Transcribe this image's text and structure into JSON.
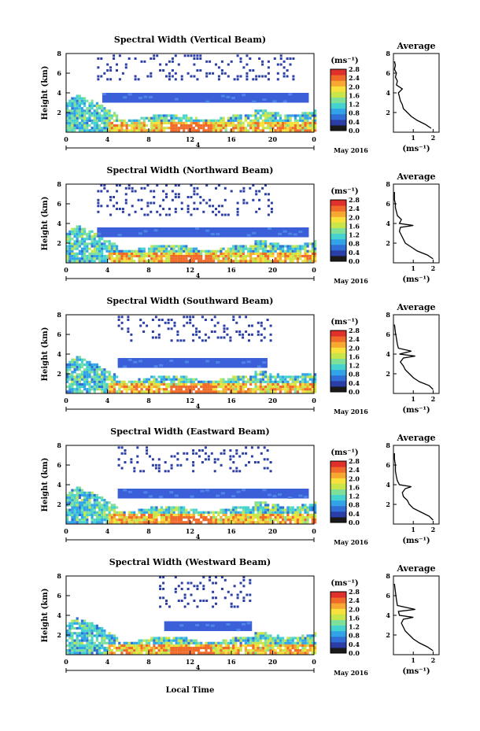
{
  "figure": {
    "x_axis_title": "Local Time",
    "date_label": "May 2016",
    "day_marker": "4",
    "units_label": "(ms⁻¹)",
    "avg_title": "Average",
    "avg_xlabel": "(ms⁻¹)",
    "height_label": "Height (km)"
  },
  "colors": {
    "scale": [
      "#1a1a1a",
      "#2b3ea8",
      "#2f6fd6",
      "#33a3e8",
      "#46d3d0",
      "#7fe09a",
      "#c8e64a",
      "#f7e13a",
      "#f7a830",
      "#f06a2a",
      "#e0302a"
    ],
    "low_cloud_layer": "#3a5fd8",
    "high_speckle": "#2c3fa6"
  },
  "chart_data": [
    {
      "type": "heatmap",
      "title": "Spectral Width (Vertical Beam)",
      "xlabel": "",
      "ylabel": "Height (km)",
      "xlim": [
        0,
        24
      ],
      "ylim": [
        0,
        8
      ],
      "x_ticks": [
        "0",
        "4",
        "8",
        "12",
        "16",
        "20",
        "0"
      ],
      "y_ticks": [
        "2",
        "4",
        "6",
        "8"
      ],
      "colorbar": {
        "label": "(ms⁻¹)",
        "ticks": [
          "0.0",
          "0.4",
          "0.8",
          "1.2",
          "1.6",
          "2.0",
          "2.4",
          "2.8"
        ],
        "range": [
          0,
          2.8
        ]
      },
      "average_profile": {
        "title": "Average",
        "xlabel": "(ms⁻¹)",
        "x_ticks": [
          "1",
          "2"
        ],
        "y_ticks": [
          "2",
          "4",
          "6",
          "8"
        ],
        "xlim": [
          0,
          2.3
        ],
        "ylim": [
          0,
          8
        ],
        "points": [
          [
            1.9,
            0.4
          ],
          [
            1.6,
            0.8
          ],
          [
            1.2,
            1.2
          ],
          [
            0.9,
            1.6
          ],
          [
            0.7,
            2.0
          ],
          [
            0.5,
            2.4
          ],
          [
            0.45,
            2.8
          ],
          [
            0.35,
            3.2
          ],
          [
            0.3,
            3.6
          ],
          [
            0.25,
            4.0
          ],
          [
            0.45,
            4.4
          ],
          [
            0.15,
            4.8
          ],
          [
            0.2,
            5.2
          ],
          [
            0.1,
            5.6
          ],
          [
            0.15,
            6.0
          ],
          [
            0.05,
            6.4
          ],
          [
            0.1,
            6.8
          ],
          [
            0.05,
            7.2
          ]
        ]
      },
      "layer": {
        "x_start": 3.5,
        "x_end": 23.5,
        "y_bottom": 3.0,
        "y_top": 4.0,
        "value": 0.4
      },
      "low_region_value_max": 2.6,
      "high_speckle": {
        "x_start": 3.0,
        "x_end": 22.0,
        "y_bottom": 5.5,
        "y_top": 8.0
      }
    },
    {
      "type": "heatmap",
      "title": "Spectral Width (Northward Beam)",
      "xlabel": "",
      "ylabel": "Height (km)",
      "xlim": [
        0,
        24
      ],
      "ylim": [
        0,
        8
      ],
      "x_ticks": [
        "0",
        "4",
        "8",
        "12",
        "16",
        "20",
        "0"
      ],
      "y_ticks": [
        "2",
        "4",
        "6",
        "8"
      ],
      "colorbar": {
        "label": "(ms⁻¹)",
        "ticks": [
          "0.0",
          "0.4",
          "0.8",
          "1.2",
          "1.6",
          "2.0",
          "2.4",
          "2.8"
        ],
        "range": [
          0,
          2.8
        ]
      },
      "average_profile": {
        "title": "Average",
        "xlabel": "(ms⁻¹)",
        "x_ticks": [
          "1",
          "2"
        ],
        "y_ticks": [
          "2",
          "4",
          "6",
          "8"
        ],
        "xlim": [
          0,
          2.3
        ],
        "ylim": [
          0,
          8
        ],
        "points": [
          [
            2.0,
            0.4
          ],
          [
            1.7,
            0.8
          ],
          [
            1.2,
            1.2
          ],
          [
            0.9,
            1.6
          ],
          [
            0.6,
            2.0
          ],
          [
            0.5,
            2.4
          ],
          [
            0.4,
            2.8
          ],
          [
            0.3,
            3.2
          ],
          [
            0.35,
            3.6
          ],
          [
            1.0,
            3.8
          ],
          [
            0.3,
            4.0
          ],
          [
            0.4,
            4.4
          ],
          [
            0.2,
            4.8
          ],
          [
            0.15,
            5.2
          ],
          [
            0.1,
            5.6
          ],
          [
            0.1,
            6.0
          ],
          [
            0.05,
            6.4
          ],
          [
            0.05,
            7.2
          ]
        ]
      },
      "layer": {
        "x_start": 3.0,
        "x_end": 23.5,
        "y_bottom": 2.6,
        "y_top": 3.6,
        "value": 0.4
      },
      "low_region_value_max": 2.6,
      "high_speckle": {
        "x_start": 3.0,
        "x_end": 20.0,
        "y_bottom": 5.0,
        "y_top": 8.0
      }
    },
    {
      "type": "heatmap",
      "title": "Spectral Width (Southward Beam)",
      "xlabel": "",
      "ylabel": "Height (km)",
      "xlim": [
        0,
        24
      ],
      "ylim": [
        0,
        8
      ],
      "x_ticks": [
        "0",
        "4",
        "8",
        "12",
        "16",
        "20",
        "0"
      ],
      "y_ticks": [
        "2",
        "4",
        "6",
        "8"
      ],
      "colorbar": {
        "label": "(ms⁻¹)",
        "ticks": [
          "0.0",
          "0.4",
          "0.8",
          "1.2",
          "1.6",
          "2.0",
          "2.4",
          "2.8"
        ],
        "range": [
          0,
          2.8
        ]
      },
      "average_profile": {
        "title": "Average",
        "xlabel": "(ms⁻¹)",
        "x_ticks": [
          "1",
          "2"
        ],
        "y_ticks": [
          "2",
          "4",
          "6",
          "8"
        ],
        "xlim": [
          0,
          2.3
        ],
        "ylim": [
          0,
          8
        ],
        "points": [
          [
            2.0,
            0.4
          ],
          [
            1.8,
            0.8
          ],
          [
            1.3,
            1.2
          ],
          [
            1.0,
            1.6
          ],
          [
            0.8,
            2.0
          ],
          [
            0.6,
            2.4
          ],
          [
            0.5,
            2.8
          ],
          [
            0.35,
            3.2
          ],
          [
            0.5,
            3.6
          ],
          [
            1.1,
            3.8
          ],
          [
            0.3,
            4.0
          ],
          [
            0.9,
            4.3
          ],
          [
            0.25,
            4.6
          ],
          [
            0.2,
            5.0
          ],
          [
            0.15,
            5.6
          ],
          [
            0.1,
            6.2
          ],
          [
            0.05,
            7.0
          ]
        ]
      },
      "layer": {
        "x_start": 5.0,
        "x_end": 19.5,
        "y_bottom": 2.6,
        "y_top": 3.6,
        "value": 0.4
      },
      "low_region_value_max": 2.6,
      "high_speckle": {
        "x_start": 5.0,
        "x_end": 20.0,
        "y_bottom": 5.5,
        "y_top": 8.0
      }
    },
    {
      "type": "heatmap",
      "title": "Spectral Width (Eastward Beam)",
      "xlabel": "",
      "ylabel": "Height (km)",
      "xlim": [
        0,
        24
      ],
      "ylim": [
        0,
        8
      ],
      "x_ticks": [
        "0",
        "4",
        "8",
        "12",
        "16",
        "20",
        "0"
      ],
      "y_ticks": [
        "2",
        "4",
        "6",
        "8"
      ],
      "colorbar": {
        "label": "(ms⁻¹)",
        "ticks": [
          "0.0",
          "0.4",
          "0.8",
          "1.2",
          "1.6",
          "2.0",
          "2.4",
          "2.8"
        ],
        "range": [
          0,
          2.8
        ]
      },
      "average_profile": {
        "title": "Average",
        "xlabel": "(ms⁻¹)",
        "x_ticks": [
          "1",
          "2"
        ],
        "y_ticks": [
          "2",
          "4",
          "6",
          "8"
        ],
        "xlim": [
          0,
          2.3
        ],
        "ylim": [
          0,
          8
        ],
        "points": [
          [
            2.0,
            0.4
          ],
          [
            1.8,
            0.8
          ],
          [
            1.4,
            1.2
          ],
          [
            1.0,
            1.6
          ],
          [
            0.8,
            2.0
          ],
          [
            0.7,
            2.4
          ],
          [
            0.5,
            2.8
          ],
          [
            0.45,
            3.2
          ],
          [
            0.6,
            3.6
          ],
          [
            0.9,
            3.8
          ],
          [
            0.3,
            4.0
          ],
          [
            0.2,
            4.4
          ],
          [
            0.15,
            4.8
          ],
          [
            0.1,
            5.4
          ],
          [
            0.1,
            6.0
          ],
          [
            0.05,
            6.6
          ],
          [
            0.05,
            7.2
          ]
        ]
      },
      "layer": {
        "x_start": 5.0,
        "x_end": 23.5,
        "y_bottom": 2.6,
        "y_top": 3.6,
        "value": 0.4
      },
      "low_region_value_max": 2.6,
      "high_speckle": {
        "x_start": 5.0,
        "x_end": 20.0,
        "y_bottom": 5.5,
        "y_top": 8.0
      }
    },
    {
      "type": "heatmap",
      "title": "Spectral Width (Westward Beam)",
      "xlabel": "Local Time",
      "ylabel": "Height (km)",
      "xlim": [
        0,
        24
      ],
      "ylim": [
        0,
        8
      ],
      "x_ticks": [
        "0",
        "4",
        "8",
        "12",
        "16",
        "20",
        "0"
      ],
      "y_ticks": [
        "2",
        "4",
        "6",
        "8"
      ],
      "colorbar": {
        "label": "(ms⁻¹)",
        "ticks": [
          "0.0",
          "0.4",
          "0.8",
          "1.2",
          "1.6",
          "2.0",
          "2.4",
          "2.8"
        ],
        "range": [
          0,
          2.8
        ]
      },
      "average_profile": {
        "title": "Average",
        "xlabel": "(ms⁻¹)",
        "x_ticks": [
          "1",
          "2"
        ],
        "y_ticks": [
          "2",
          "4",
          "6",
          "8"
        ],
        "xlim": [
          0,
          2.3
        ],
        "ylim": [
          0,
          8
        ],
        "points": [
          [
            2.0,
            0.4
          ],
          [
            1.7,
            0.8
          ],
          [
            1.3,
            1.2
          ],
          [
            1.0,
            1.6
          ],
          [
            0.8,
            2.0
          ],
          [
            0.6,
            2.4
          ],
          [
            0.5,
            2.8
          ],
          [
            0.4,
            3.2
          ],
          [
            0.5,
            3.6
          ],
          [
            1.0,
            3.8
          ],
          [
            0.3,
            4.0
          ],
          [
            0.25,
            4.4
          ],
          [
            1.1,
            4.6
          ],
          [
            0.2,
            5.0
          ],
          [
            0.15,
            5.6
          ],
          [
            0.1,
            6.4
          ],
          [
            0.05,
            7.2
          ]
        ]
      },
      "layer": {
        "x_start": 9.5,
        "x_end": 18.0,
        "y_bottom": 2.4,
        "y_top": 3.4,
        "value": 0.4
      },
      "low_region_value_max": 2.6,
      "high_speckle": {
        "x_start": 9.0,
        "x_end": 18.0,
        "y_bottom": 5.0,
        "y_top": 8.0
      }
    }
  ]
}
